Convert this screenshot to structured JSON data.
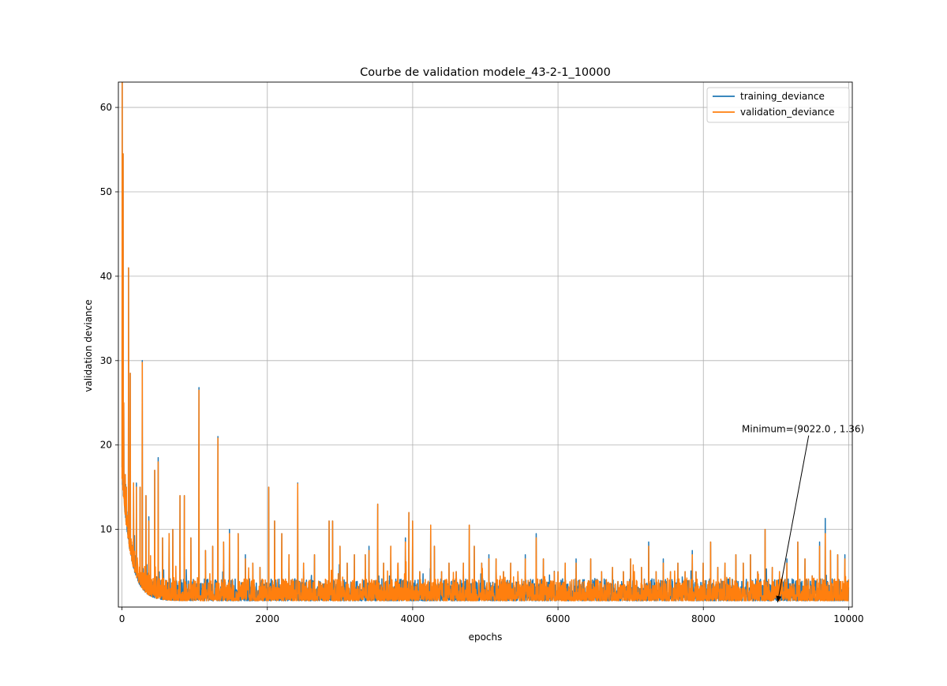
{
  "chart_data": {
    "type": "line",
    "title": "Courbe de validation modele_43-2-1_10000",
    "xlabel": "epochs",
    "ylabel": "validation deviance",
    "xlim": [
      -50,
      10050
    ],
    "ylim": [
      0.8,
      63
    ],
    "x_ticks": [
      0,
      2000,
      4000,
      6000,
      8000,
      10000
    ],
    "y_ticks": [
      10,
      20,
      30,
      40,
      50,
      60
    ],
    "grid": true,
    "legend_position": "top-right",
    "series": [
      {
        "name": "training_deviance",
        "color": "#1f77b4",
        "n_epochs": 10000,
        "baseline": {
          "start": 16,
          "end": 1.55,
          "decay_epochs": 120
        },
        "spikes": [
          [
            5,
            63
          ],
          [
            15,
            54.5
          ],
          [
            25,
            25
          ],
          [
            45,
            16.5
          ],
          [
            60,
            15
          ],
          [
            90,
            41
          ],
          [
            115,
            28.5
          ],
          [
            160,
            15.5
          ],
          [
            200,
            15.5
          ],
          [
            250,
            15
          ],
          [
            280,
            30
          ],
          [
            330,
            14
          ],
          [
            370,
            11.5
          ],
          [
            450,
            17
          ],
          [
            500,
            18.5
          ],
          [
            560,
            9
          ],
          [
            650,
            9.5
          ],
          [
            700,
            10
          ],
          [
            800,
            14
          ],
          [
            860,
            14
          ],
          [
            950,
            9
          ],
          [
            1060,
            26.8
          ],
          [
            1150,
            7.5
          ],
          [
            1250,
            8
          ],
          [
            1320,
            21
          ],
          [
            1400,
            8.5
          ],
          [
            1480,
            10
          ],
          [
            1600,
            9.5
          ],
          [
            1700,
            7
          ],
          [
            1800,
            6
          ],
          [
            1900,
            5.5
          ],
          [
            2020,
            15
          ],
          [
            2100,
            11
          ],
          [
            2200,
            9.5
          ],
          [
            2300,
            7
          ],
          [
            2420,
            15.5
          ],
          [
            2500,
            6
          ],
          [
            2650,
            7
          ],
          [
            2850,
            11
          ],
          [
            2900,
            11
          ],
          [
            3000,
            8
          ],
          [
            3100,
            6
          ],
          [
            3200,
            7
          ],
          [
            3350,
            7
          ],
          [
            3400,
            8
          ],
          [
            3520,
            13
          ],
          [
            3600,
            6
          ],
          [
            3700,
            8
          ],
          [
            3800,
            6
          ],
          [
            3900,
            9
          ],
          [
            3950,
            12
          ],
          [
            4000,
            11
          ],
          [
            4100,
            5
          ],
          [
            4250,
            10.5
          ],
          [
            4300,
            8
          ],
          [
            4400,
            5
          ],
          [
            4500,
            6
          ],
          [
            4600,
            5
          ],
          [
            4700,
            6
          ],
          [
            4780,
            10.5
          ],
          [
            4850,
            8
          ],
          [
            4950,
            6
          ],
          [
            5050,
            7
          ],
          [
            5150,
            6.5
          ],
          [
            5250,
            5
          ],
          [
            5350,
            6
          ],
          [
            5450,
            5
          ],
          [
            5550,
            7
          ],
          [
            5700,
            9.5
          ],
          [
            5800,
            6.5
          ],
          [
            5950,
            5
          ],
          [
            6000,
            5
          ],
          [
            6100,
            6
          ],
          [
            6250,
            6.5
          ],
          [
            6300,
            4
          ],
          [
            6450,
            6.5
          ],
          [
            6600,
            5
          ],
          [
            6750,
            5.5
          ],
          [
            6900,
            5
          ],
          [
            7000,
            6.5
          ],
          [
            7050,
            5
          ],
          [
            7150,
            5.5
          ],
          [
            7250,
            8.5
          ],
          [
            7350,
            5
          ],
          [
            7450,
            6.5
          ],
          [
            7550,
            5
          ],
          [
            7650,
            6
          ],
          [
            7750,
            5
          ],
          [
            7850,
            7.5
          ],
          [
            7900,
            5
          ],
          [
            8000,
            6
          ],
          [
            8100,
            8.5
          ],
          [
            8200,
            5.5
          ],
          [
            8300,
            6
          ],
          [
            8450,
            7
          ],
          [
            8550,
            6
          ],
          [
            8650,
            7
          ],
          [
            8750,
            5
          ],
          [
            8850,
            10
          ],
          [
            8950,
            5.5
          ],
          [
            9050,
            5
          ],
          [
            9150,
            6.5
          ],
          [
            9300,
            8.5
          ],
          [
            9400,
            6.5
          ],
          [
            9500,
            4.5
          ],
          [
            9600,
            8.5
          ],
          [
            9680,
            11.3
          ],
          [
            9750,
            7.5
          ],
          [
            9850,
            7
          ],
          [
            9950,
            7
          ]
        ]
      },
      {
        "name": "validation_deviance",
        "color": "#ff7f0e",
        "n_epochs": 10000,
        "baseline": {
          "start": 16,
          "end": 1.55,
          "decay_epochs": 120
        },
        "spikes": [
          [
            5,
            63
          ],
          [
            15,
            54.5
          ],
          [
            25,
            25
          ],
          [
            45,
            16.5
          ],
          [
            60,
            15
          ],
          [
            90,
            41
          ],
          [
            115,
            28.5
          ],
          [
            160,
            15.5
          ],
          [
            200,
            15
          ],
          [
            250,
            15
          ],
          [
            280,
            29.8
          ],
          [
            330,
            14
          ],
          [
            370,
            11
          ],
          [
            450,
            17
          ],
          [
            500,
            18
          ],
          [
            560,
            9
          ],
          [
            650,
            9.5
          ],
          [
            700,
            10
          ],
          [
            800,
            14
          ],
          [
            860,
            14
          ],
          [
            950,
            9
          ],
          [
            1060,
            26.5
          ],
          [
            1150,
            7.5
          ],
          [
            1250,
            8
          ],
          [
            1320,
            20.8
          ],
          [
            1400,
            8.5
          ],
          [
            1480,
            9.5
          ],
          [
            1600,
            9.5
          ],
          [
            1700,
            6.5
          ],
          [
            1800,
            6
          ],
          [
            1900,
            5.5
          ],
          [
            2020,
            15
          ],
          [
            2100,
            11
          ],
          [
            2200,
            9.5
          ],
          [
            2300,
            7
          ],
          [
            2420,
            15.4
          ],
          [
            2500,
            6
          ],
          [
            2650,
            7
          ],
          [
            2850,
            11
          ],
          [
            2900,
            11
          ],
          [
            3000,
            8
          ],
          [
            3100,
            6
          ],
          [
            3200,
            7
          ],
          [
            3350,
            7
          ],
          [
            3400,
            7.5
          ],
          [
            3520,
            13
          ],
          [
            3600,
            6
          ],
          [
            3700,
            8
          ],
          [
            3800,
            6
          ],
          [
            3900,
            8.5
          ],
          [
            3950,
            12
          ],
          [
            4000,
            11
          ],
          [
            4100,
            5
          ],
          [
            4250,
            10.5
          ],
          [
            4300,
            8
          ],
          [
            4400,
            5
          ],
          [
            4500,
            6
          ],
          [
            4600,
            5
          ],
          [
            4700,
            6
          ],
          [
            4780,
            10.5
          ],
          [
            4850,
            8
          ],
          [
            4950,
            6
          ],
          [
            5050,
            6.5
          ],
          [
            5150,
            6.5
          ],
          [
            5250,
            5
          ],
          [
            5350,
            6
          ],
          [
            5450,
            5
          ],
          [
            5550,
            6.5
          ],
          [
            5700,
            9
          ],
          [
            5800,
            6.5
          ],
          [
            5950,
            5
          ],
          [
            6000,
            5
          ],
          [
            6100,
            6
          ],
          [
            6250,
            6
          ],
          [
            6300,
            4
          ],
          [
            6450,
            6.5
          ],
          [
            6600,
            5
          ],
          [
            6750,
            5.5
          ],
          [
            6900,
            5
          ],
          [
            7000,
            6.5
          ],
          [
            7050,
            5
          ],
          [
            7150,
            5.5
          ],
          [
            7250,
            8
          ],
          [
            7350,
            5
          ],
          [
            7450,
            6
          ],
          [
            7550,
            5
          ],
          [
            7650,
            6
          ],
          [
            7750,
            5
          ],
          [
            7850,
            7
          ],
          [
            7900,
            5
          ],
          [
            8000,
            6
          ],
          [
            8100,
            8.5
          ],
          [
            8200,
            5.5
          ],
          [
            8300,
            6
          ],
          [
            8450,
            7
          ],
          [
            8550,
            6
          ],
          [
            8650,
            7
          ],
          [
            8750,
            5
          ],
          [
            8850,
            10
          ],
          [
            8950,
            5.5
          ],
          [
            9050,
            5
          ],
          [
            9150,
            6
          ],
          [
            9300,
            8.5
          ],
          [
            9400,
            6.5
          ],
          [
            9500,
            4.5
          ],
          [
            9600,
            8
          ],
          [
            9680,
            9.5
          ],
          [
            9750,
            7.5
          ],
          [
            9850,
            7
          ],
          [
            9950,
            6.5
          ]
        ]
      }
    ],
    "annotation": {
      "text": "Minimum=(9022.0 , 1.36)",
      "x": 9022.0,
      "y": 1.36,
      "text_x": 8530,
      "text_y": 21.5
    }
  }
}
